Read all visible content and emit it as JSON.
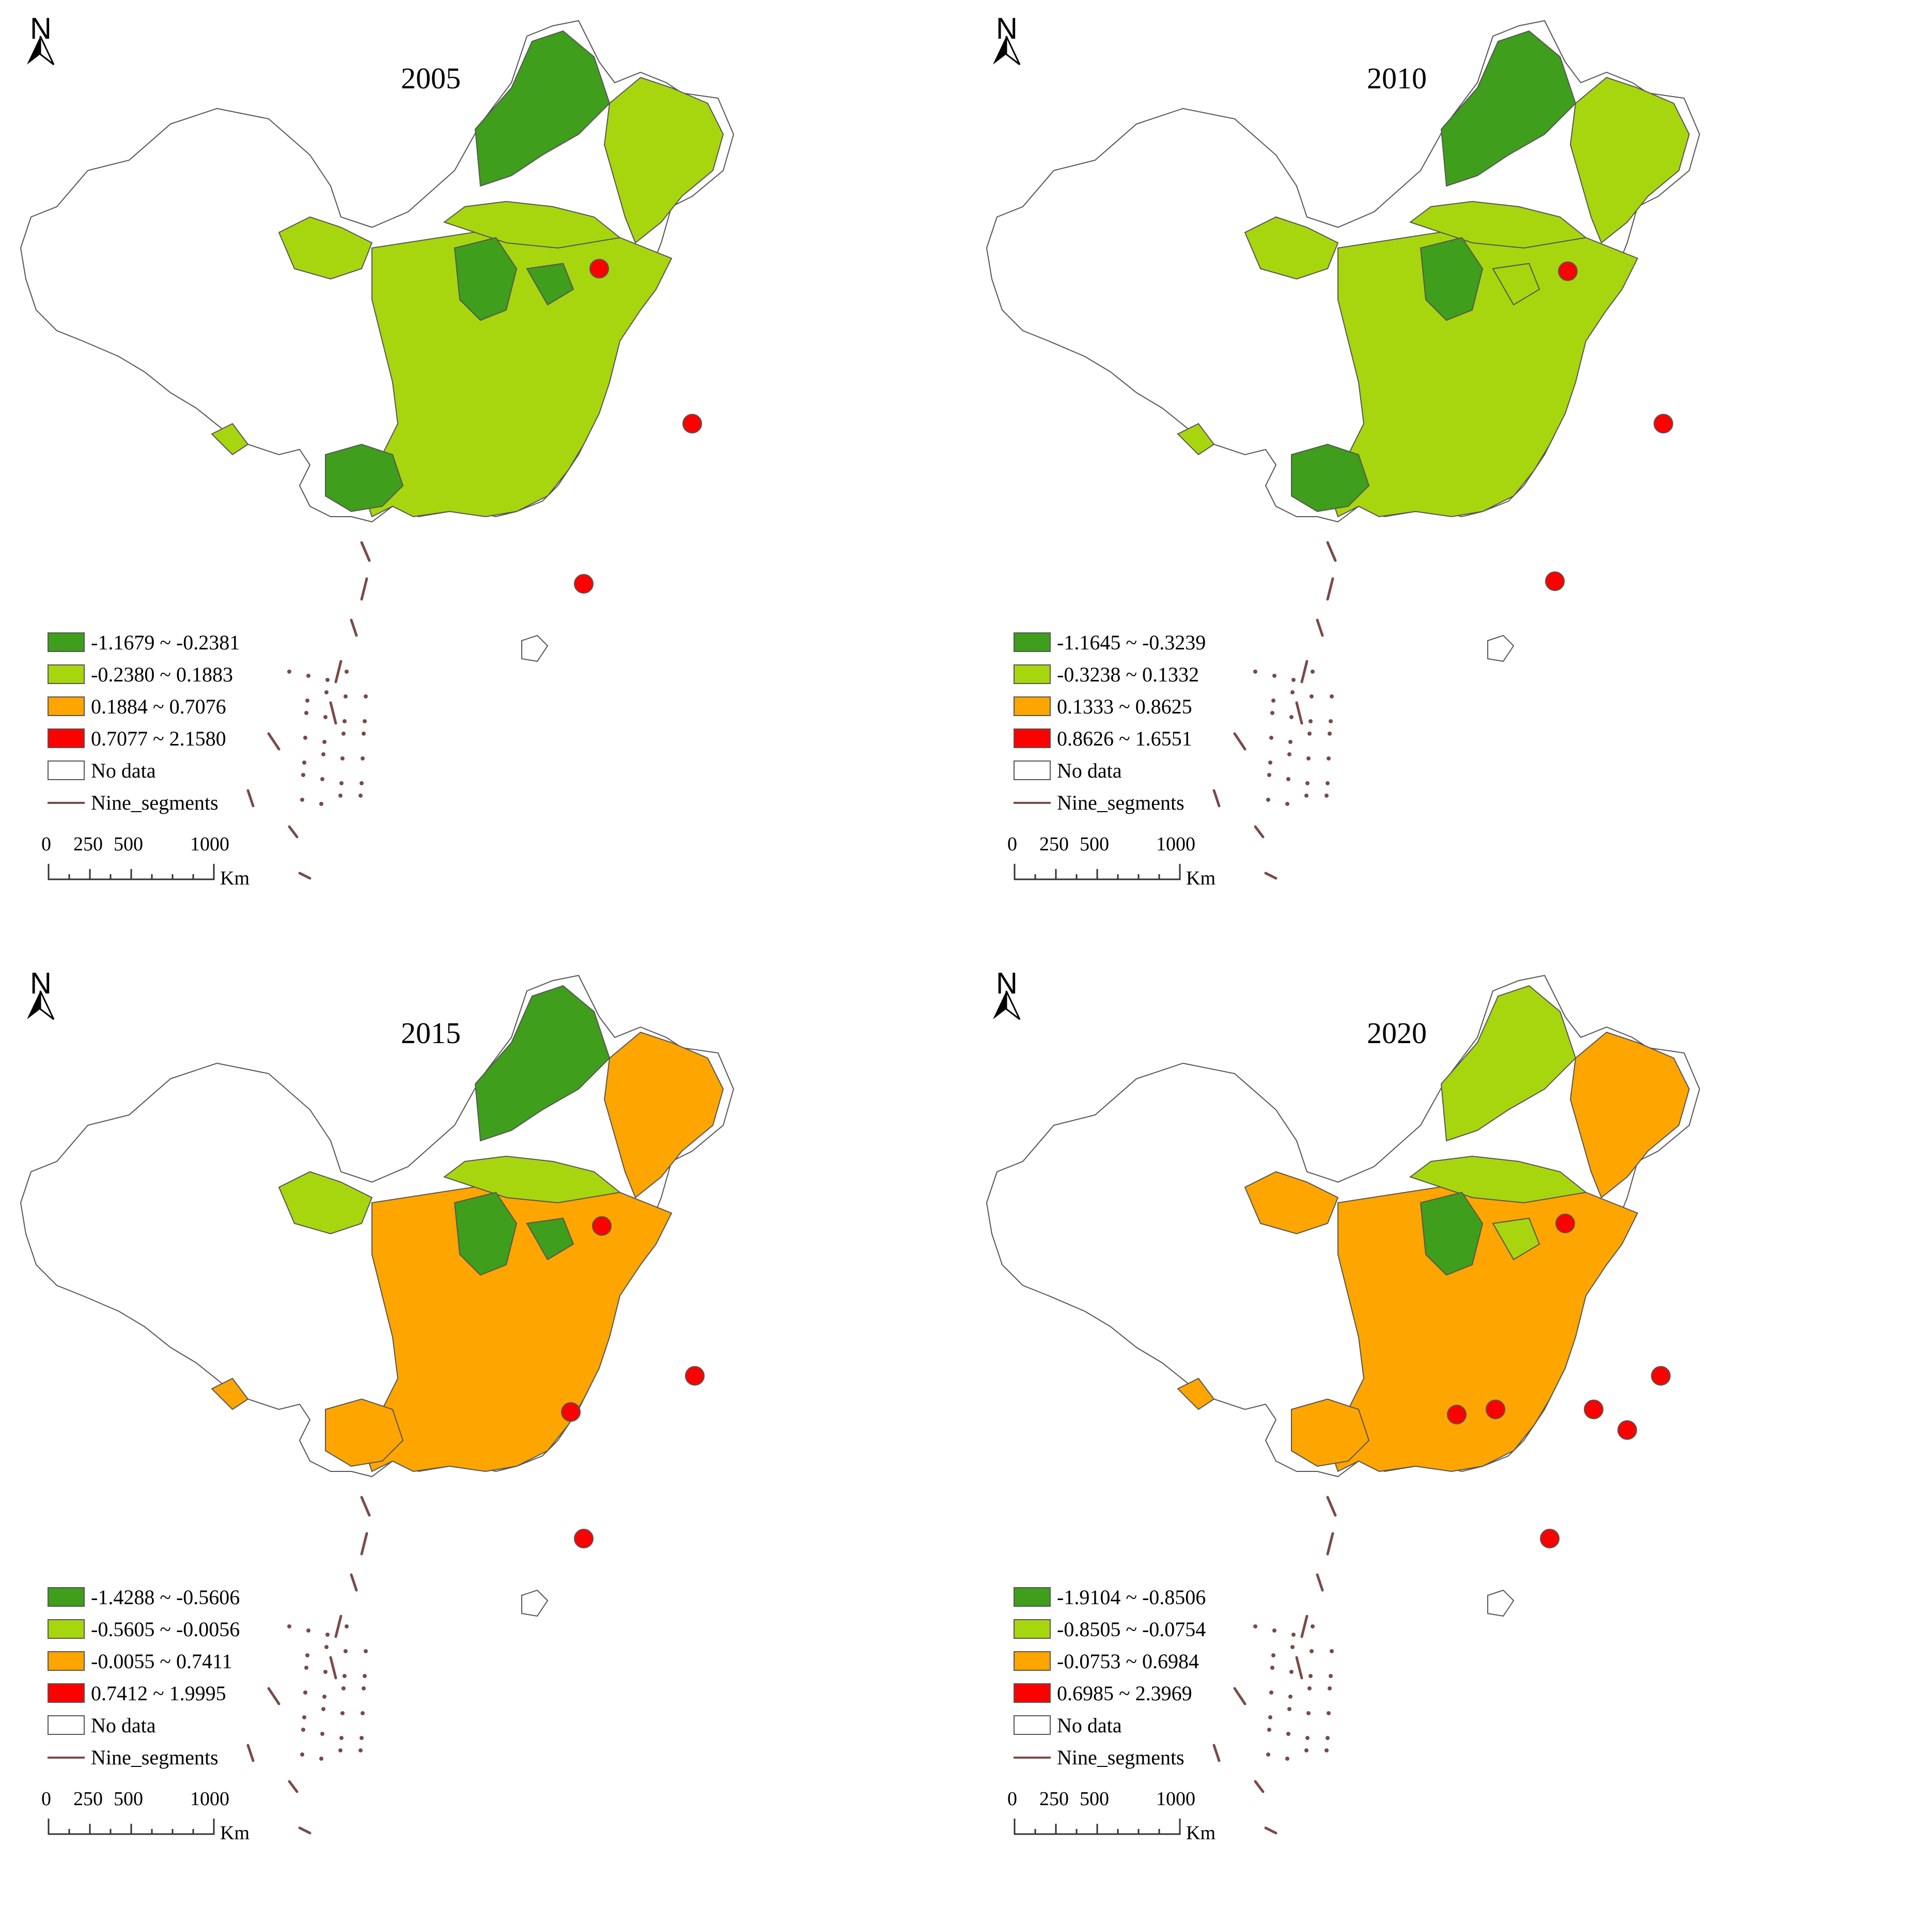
{
  "colors": {
    "class1": "#3f9e1b",
    "class2": "#a7d60f",
    "class3": "#ffa500",
    "class4": "#ff0000",
    "nodata": "#ffffff",
    "boundary": "#555555",
    "nine_segments": "#7a4a48"
  },
  "north_arrow_label": "N",
  "scale": {
    "ticks": [
      "0",
      "250",
      "500",
      "1000"
    ],
    "unit": "Km"
  },
  "legend_common": {
    "no_data": "No data",
    "nine_segments": "Nine_segments"
  },
  "panels": [
    {
      "year": "2005",
      "legend": [
        "-1.1679 ~ -0.2381",
        "-0.2380 ~ 0.1883",
        "0.1884 ~ 0.7076",
        "0.7077 ~ 2.1580"
      ]
    },
    {
      "year": "2010",
      "legend": [
        "-1.1645 ~ -0.3239",
        "-0.3238 ~ 0.1332",
        "0.1333 ~ 0.8625",
        "0.8626 ~ 1.6551"
      ]
    },
    {
      "year": "2015",
      "legend": [
        "-1.4288 ~ -0.5606",
        "-0.5605 ~ -0.0056",
        "-0.0055 ~ 0.7411",
        "0.7412 ~ 1.9995"
      ]
    },
    {
      "year": "2020",
      "legend": [
        "-1.9104 ~ -0.8506",
        "-0.8505 ~ -0.0754",
        "-0.0753 ~ 0.6984",
        "0.6985 ~ 2.3969"
      ]
    }
  ]
}
